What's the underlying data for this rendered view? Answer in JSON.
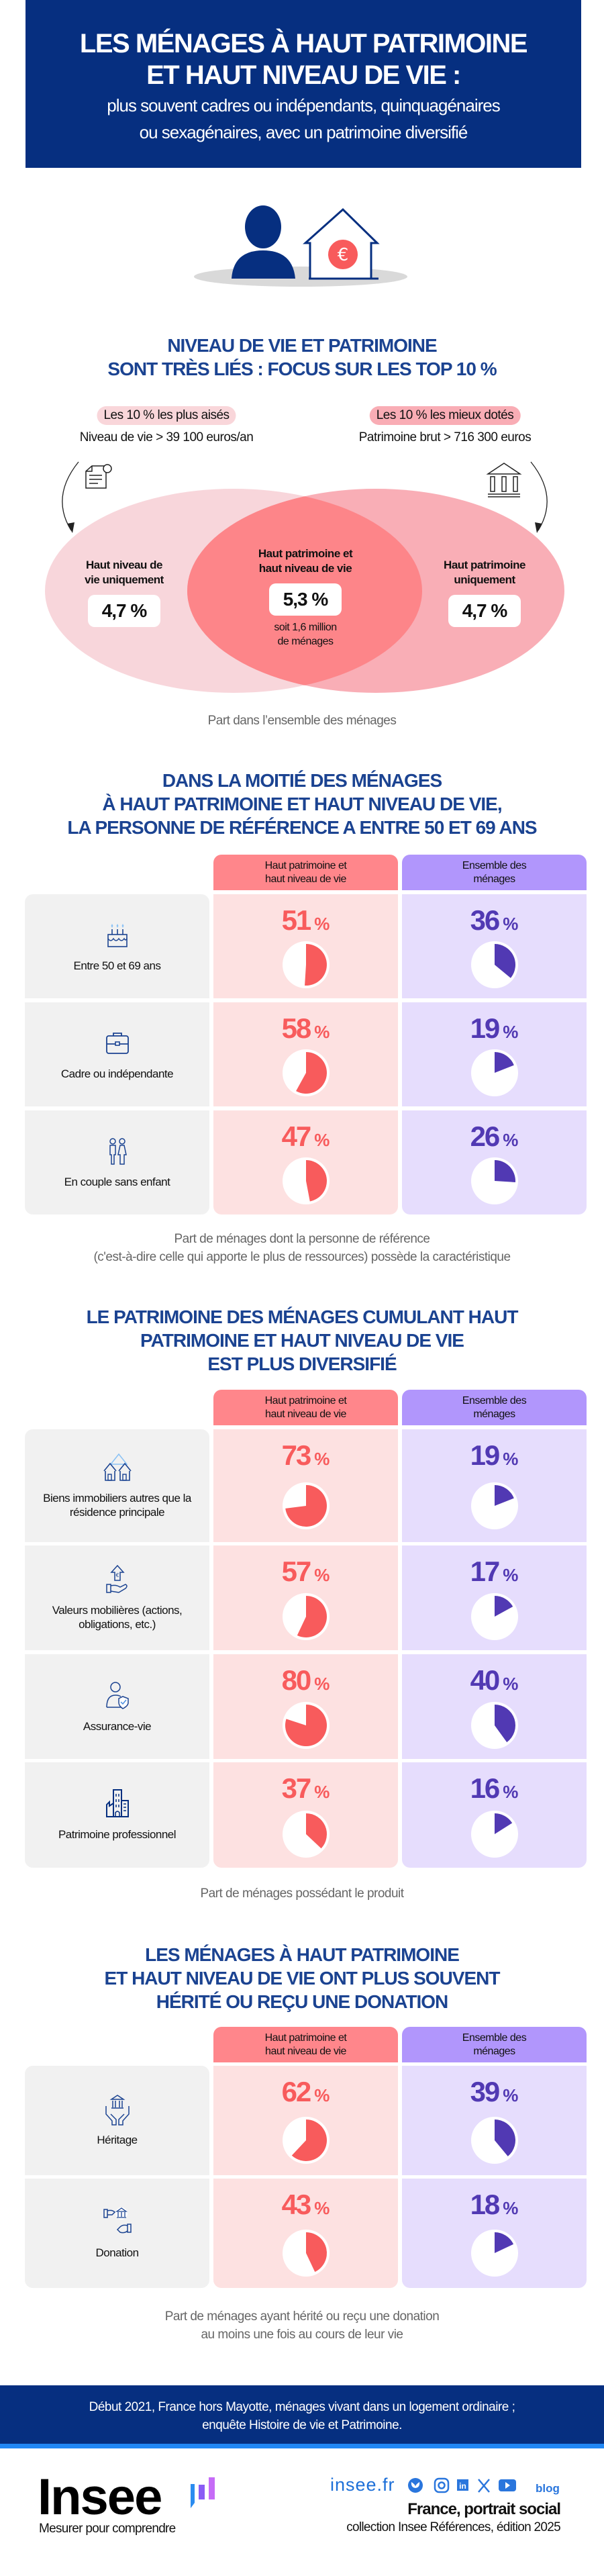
{
  "header": {
    "title_lines": [
      "LES MÉNAGES À HAUT PATRIMOINE",
      "ET HAUT NIVEAU DE VIE :"
    ],
    "subtitle_lines": [
      "plus souvent cadres ou indépendants, quinquagénaires",
      "ou sexagénaires, avec un patrimoine diversifié"
    ]
  },
  "colors": {
    "navy": "#062f80",
    "title_blue": "#1b4391",
    "red": "#f85b5c",
    "purple": "#5139b3",
    "red_header": "#ff868b",
    "purple_header": "#b196fc"
  },
  "venn": {
    "title_lines": [
      "NIVEAU DE VIE ET PATRIMOINE",
      "SONT TRÈS LIÉS : FOCUS SUR LES TOP 10 %"
    ],
    "left_pill": "Les 10 % les plus aisés",
    "left_sub": "Niveau de vie > 39 100 euros/an",
    "right_pill": "Les 10 % les mieux dotés",
    "right_sub": "Patrimoine brut > 716 300 euros",
    "left_label_lines": [
      "Haut niveau de",
      "vie uniquement"
    ],
    "left_value": "4,7 %",
    "center_label_lines": [
      "Haut patrimoine et",
      "haut niveau de vie"
    ],
    "center_value": "5,3 %",
    "center_note_lines": [
      "soit 1,6 million",
      "de ménages"
    ],
    "right_label_lines": [
      "Haut patrimoine",
      "uniquement"
    ],
    "right_value": "4,7 %",
    "caption": "Part dans l’ensemble des ménages"
  },
  "col_headers": {
    "c1": [
      "Haut patrimoine et",
      "haut niveau de vie"
    ],
    "c2": [
      "Ensemble des",
      "ménages"
    ]
  },
  "sections": [
    {
      "title_lines": [
        "DANS LA MOITIÉ DES MÉNAGES",
        "À HAUT PATRIMOINE ET HAUT NIVEAU DE VIE,",
        "LA PERSONNE DE RÉFÉRENCE A ENTRE 50 ET 69 ANS"
      ],
      "rows": [
        {
          "label": "Entre 50 et 69 ans",
          "icon": "birthday-cake-icon",
          "c1": 51,
          "c2": 36
        },
        {
          "label": "Cadre ou indépendante",
          "icon": "briefcase-icon",
          "c1": 58,
          "c2": 19
        },
        {
          "label": "En couple sans enfant",
          "icon": "couple-icon",
          "c1": 47,
          "c2": 26
        }
      ],
      "caption_lines": [
        "Part de ménages dont la personne de référence",
        "(c'est-à-dire celle qui apporte le plus de ressources) possède la caractéristique"
      ]
    },
    {
      "title_lines": [
        "LE PATRIMOINE DES MÉNAGES CUMULANT HAUT",
        "PATRIMOINE ET HAUT NIVEAU DE VIE",
        "EST PLUS DIVERSIFIÉ"
      ],
      "rows": [
        {
          "label": "Biens immobiliers autres que la résidence principale",
          "icon": "houses-icon",
          "c1": 73,
          "c2": 19
        },
        {
          "label": "Valeurs mobilières (actions, obligations, etc.)",
          "icon": "hand-euro-icon",
          "c1": 57,
          "c2": 17
        },
        {
          "label": "Assurance-vie",
          "icon": "person-shield-icon",
          "c1": 80,
          "c2": 40
        },
        {
          "label": "Patrimoine professionnel",
          "icon": "buildings-icon",
          "c1": 37,
          "c2": 16
        }
      ],
      "caption_lines": [
        "Part de ménages possédant le produit"
      ]
    },
    {
      "title_lines": [
        "LES MÉNAGES À HAUT PATRIMOINE",
        "ET HAUT NIVEAU DE VIE ONT PLUS SOUVENT",
        "HÉRITÉ OU REÇU UNE DONATION"
      ],
      "rows": [
        {
          "label": "Héritage",
          "icon": "hands-bank-icon",
          "c1": 62,
          "c2": 39
        },
        {
          "label": "Donation",
          "icon": "giving-hands-icon",
          "c1": 43,
          "c2": 18
        }
      ],
      "caption_lines": [
        "Part de ménages ayant hérité ou reçu une donation",
        "au moins une fois au cours de leur vie"
      ]
    }
  ],
  "percent_unit": "%",
  "footer": {
    "source_lines": [
      "Début 2021, France hors Mayotte, ménages vivant dans un logement ordinaire ;",
      "enquête Histoire de vie et Patrimoine."
    ],
    "logo": "Insee",
    "tagline": "Mesurer pour comprendre",
    "site": "insee.fr",
    "social_icons": [
      "bluesky-icon",
      "instagram-icon",
      "linkedin-icon",
      "x-icon",
      "youtube-icon",
      "blog-icon"
    ],
    "blog_label": "blog",
    "publication": "France, portrait social",
    "collection": "collection Insee Références, édition 2025"
  }
}
